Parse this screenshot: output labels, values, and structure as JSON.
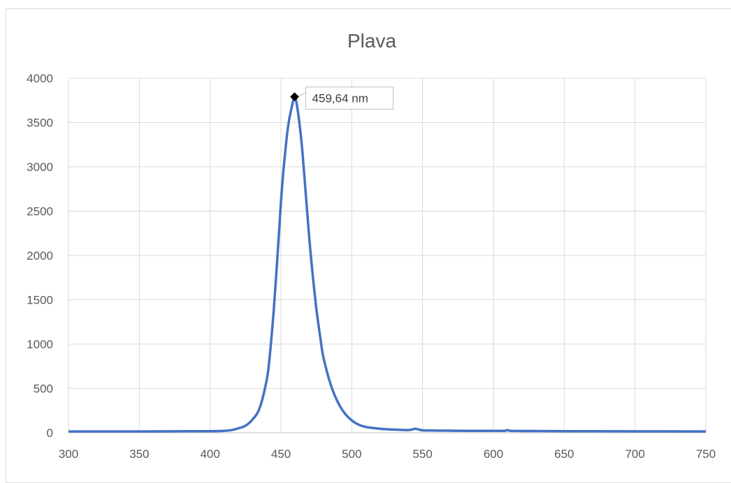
{
  "chart_data": {
    "type": "line",
    "title": "Plava",
    "xlabel": "",
    "ylabel": "",
    "xlim": [
      300,
      750
    ],
    "ylim": [
      0,
      4000
    ],
    "x_ticks": [
      300,
      350,
      400,
      450,
      500,
      550,
      600,
      650,
      700,
      750
    ],
    "y_ticks": [
      0,
      500,
      1000,
      1500,
      2000,
      2500,
      3000,
      3500,
      4000
    ],
    "grid": true,
    "legend": "none",
    "line_color": "#4472c4",
    "series": [
      {
        "name": "",
        "x": [
          300,
          350,
          400,
          410,
          415,
          420,
          425,
          430,
          435,
          440,
          442,
          445,
          448,
          450,
          452,
          455,
          458,
          459.64,
          461,
          463,
          465,
          468,
          470,
          472,
          475,
          478,
          480,
          485,
          490,
          495,
          500,
          505,
          510,
          520,
          530,
          540,
          543,
          545,
          547,
          550,
          560,
          580,
          600,
          608,
          610,
          612,
          620,
          650,
          700,
          750
        ],
        "y": [
          15,
          15,
          18,
          22,
          30,
          50,
          80,
          150,
          280,
          600,
          850,
          1400,
          2100,
          2600,
          3000,
          3450,
          3700,
          3790,
          3720,
          3500,
          3200,
          2600,
          2200,
          1850,
          1400,
          1050,
          850,
          550,
          350,
          220,
          140,
          90,
          65,
          45,
          35,
          30,
          38,
          45,
          38,
          28,
          25,
          22,
          22,
          22,
          30,
          22,
          20,
          18,
          16,
          15
        ]
      }
    ],
    "annotation": {
      "x": 459.64,
      "y": 3790,
      "label": "459,64 nm"
    }
  }
}
